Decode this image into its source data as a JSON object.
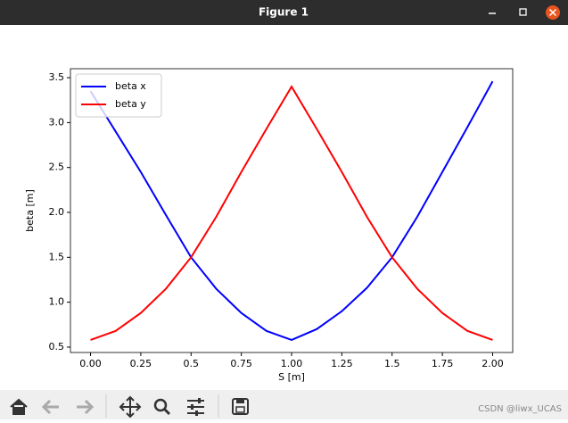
{
  "window": {
    "title": "Figure 1"
  },
  "chart_data": {
    "type": "line",
    "x": [
      0,
      0.125,
      0.25,
      0.375,
      0.5,
      0.625,
      0.75,
      0.875,
      1,
      1.125,
      1.25,
      1.375,
      1.5,
      1.625,
      1.75,
      1.875,
      2
    ],
    "series": [
      {
        "name": "beta x",
        "color": "#0000ff",
        "values": [
          3.35,
          2.9,
          2.45,
          1.97,
          1.5,
          1.15,
          0.88,
          0.68,
          0.58,
          0.7,
          0.9,
          1.16,
          1.5,
          1.95,
          2.45,
          2.95,
          3.46
        ]
      },
      {
        "name": "beta y",
        "color": "#ff0000",
        "values": [
          0.58,
          0.68,
          0.88,
          1.15,
          1.5,
          1.95,
          2.45,
          2.93,
          3.4,
          2.93,
          2.45,
          1.95,
          1.5,
          1.15,
          0.88,
          0.68,
          0.58
        ]
      }
    ],
    "xlabel": "S [m]",
    "ylabel": "beta [m]",
    "xlim": [
      -0.1,
      2.1
    ],
    "ylim": [
      0.44,
      3.6
    ],
    "xticks": [
      {
        "value": 0,
        "label": "0.00"
      },
      0.25,
      0.5,
      0.75,
      {
        "value": 1,
        "label": "1.00"
      },
      1.25,
      1.5,
      1.75,
      {
        "value": 2,
        "label": "2.00"
      }
    ],
    "yticks": [
      0.5,
      {
        "value": 1,
        "label": "1.0"
      },
      1.5,
      {
        "value": 2,
        "label": "2.0"
      },
      2.5,
      {
        "value": 3,
        "label": "3.0"
      },
      3.5
    ],
    "legend": "upper left"
  },
  "watermark": "CSDN @liwx_UCAS"
}
